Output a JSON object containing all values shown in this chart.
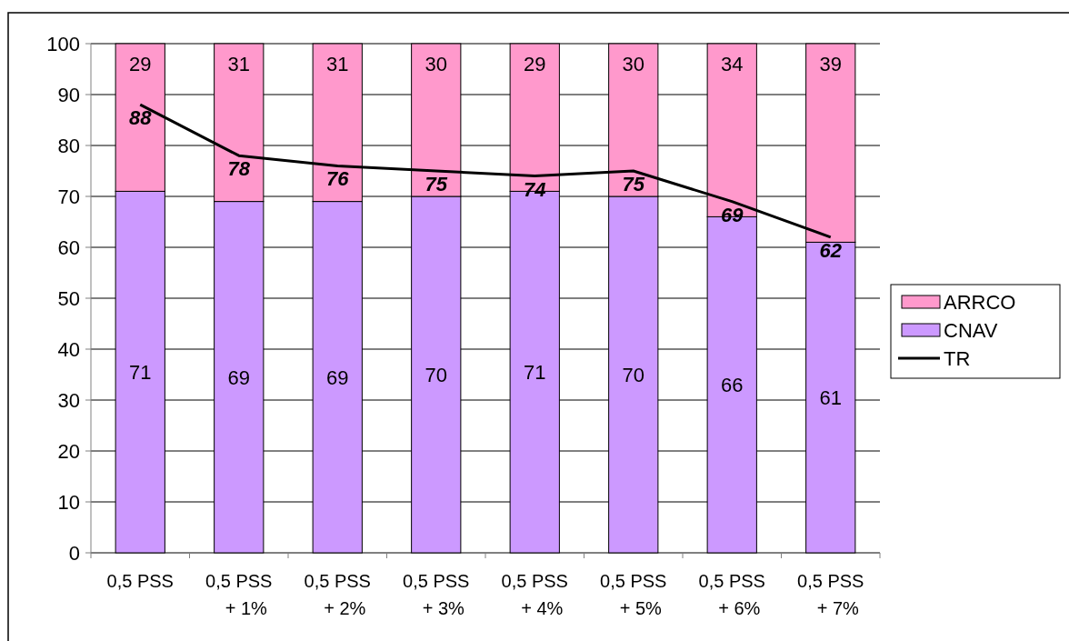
{
  "chart_data": {
    "type": "bar",
    "stacked": true,
    "categories": [
      "0,5 PSS",
      "0,5 PSS + 1%",
      "0,5 PSS + 2%",
      "0,5 PSS + 3%",
      "0,5 PSS + 4%",
      "0,5 PSS + 5%",
      "0,5 PSS + 6%",
      "0,5 PSS + 7%"
    ],
    "series": [
      {
        "name": "CNAV",
        "color": "#cc99ff",
        "values": [
          71,
          69,
          69,
          70,
          71,
          70,
          66,
          61
        ]
      },
      {
        "name": "ARRCO",
        "color": "#ff99cc",
        "values": [
          29,
          31,
          31,
          30,
          29,
          30,
          34,
          39
        ]
      },
      {
        "name": "TR",
        "type": "line",
        "color": "#000000",
        "values": [
          88,
          78,
          76,
          75,
          74,
          75,
          69,
          62
        ]
      }
    ],
    "ylim": [
      0,
      100
    ],
    "yticks": [
      0,
      10,
      20,
      30,
      40,
      50,
      60,
      70,
      80,
      90,
      100
    ],
    "grid": "y",
    "legend": "right",
    "data_labels": true
  }
}
